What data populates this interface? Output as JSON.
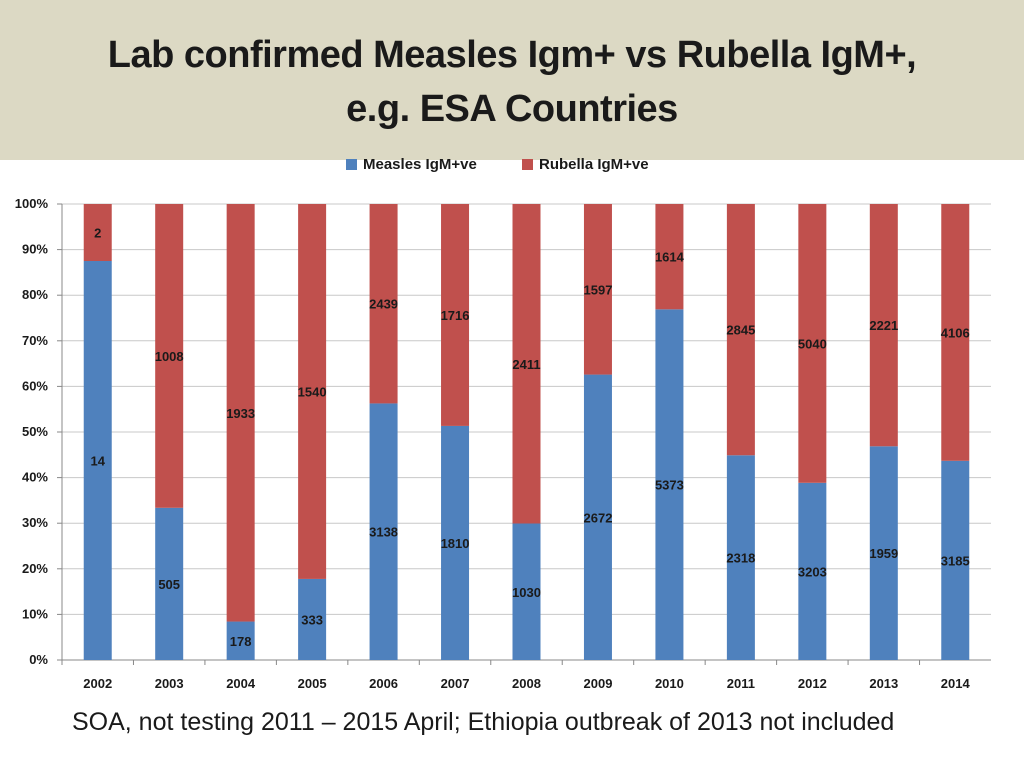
{
  "header": {
    "title_line_1": "Lab confirmed Measles Igm+ vs Rubella IgM+,",
    "title_line_2": "e.g. ESA Countries"
  },
  "footnote": "SOA, not testing 2011 – 2015 April; Ethiopia outbreak of 2013 not included",
  "colors": {
    "measles": "#4f81bd",
    "rubella": "#c0504d",
    "title_band": "#dcd9c4",
    "grid": "#c8c8c8"
  },
  "chart_data": {
    "type": "bar",
    "stacked": "percent",
    "title": "",
    "xlabel": "",
    "ylabel": "",
    "ylim": [
      0,
      100
    ],
    "y_ticks": [
      "0%",
      "10%",
      "20%",
      "30%",
      "40%",
      "50%",
      "60%",
      "70%",
      "80%",
      "90%",
      "100%"
    ],
    "legend": {
      "position": "top-center"
    },
    "categories": [
      "2002",
      "2003",
      "2004",
      "2005",
      "2006",
      "2007",
      "2008",
      "2009",
      "2010",
      "2011",
      "2012",
      "2013",
      "2014"
    ],
    "series": [
      {
        "name": "Measles IgM+ve",
        "values": [
          14,
          505,
          178,
          333,
          3138,
          1810,
          1030,
          2672,
          5373,
          2318,
          3203,
          1959,
          3185
        ]
      },
      {
        "name": "Rubella IgM+ve",
        "values": [
          2,
          1008,
          1933,
          1540,
          2439,
          1716,
          2411,
          1597,
          1614,
          2845,
          5040,
          2221,
          4106
        ]
      }
    ]
  }
}
